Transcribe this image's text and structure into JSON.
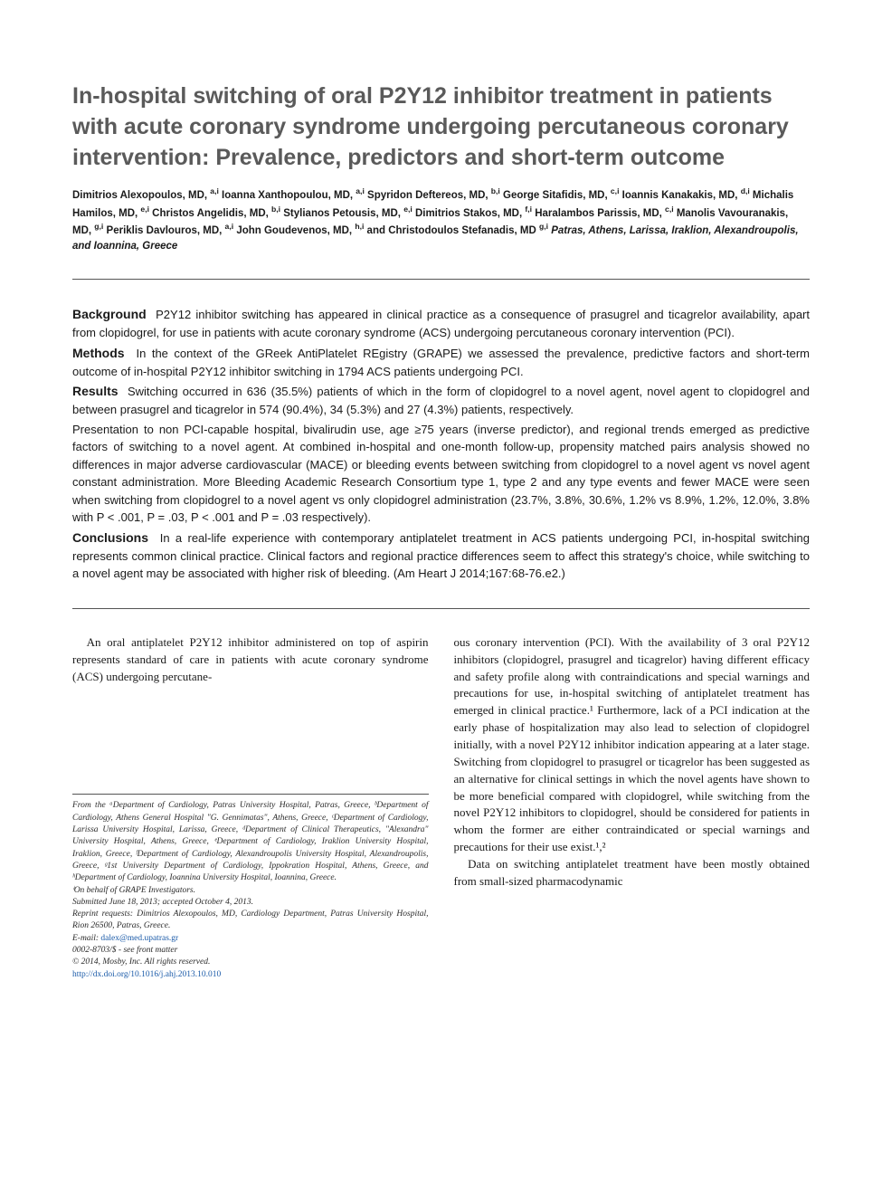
{
  "title": "In-hospital switching of oral P2Y12 inhibitor treatment in patients with acute coronary syndrome undergoing percutaneous coronary intervention: Prevalence, predictors and short-term outcome",
  "authors_html": "Dimitrios Alexopoulos, MD, <span class='sup'>a,i</span> Ioanna Xanthopoulou, MD, <span class='sup'>a,i</span> Spyridon Deftereos, MD, <span class='sup'>b,i</span> George Sitafidis, MD, <span class='sup'>c,i</span> Ioannis Kanakakis, MD, <span class='sup'>d,i</span> Michalis Hamilos, MD, <span class='sup'>e,i</span> Christos Angelidis, MD, <span class='sup'>b,i</span> Stylianos Petousis, MD, <span class='sup'>e,i</span> Dimitrios Stakos, MD, <span class='sup'>f,i</span> Haralambos Parissis, MD, <span class='sup'>c,i</span> Manolis Vavouranakis, MD, <span class='sup'>g,i</span> Periklis Davlouros, MD, <span class='sup'>a,i</span> John Goudevenos, MD, <span class='sup'>h,i</span> and Christodoulos Stefanadis, MD <span class='sup'>g,i</span> <span class='affil-loc'>Patras, Athens, Larissa, Iraklion, Alexandroupolis, and Ioannina, Greece</span>",
  "abstract": {
    "background": {
      "label": "Background",
      "text": "P2Y12 inhibitor switching has appeared in clinical practice as a consequence of prasugrel and ticagrelor availability, apart from clopidogrel, for use in patients with acute coronary syndrome (ACS) undergoing percutaneous coronary intervention (PCI)."
    },
    "methods": {
      "label": "Methods",
      "text": "In the context of the GReek AntiPlatelet REgistry (GRAPE) we assessed the prevalence, predictive factors and short-term outcome of in-hospital P2Y12 inhibitor switching in 1794 ACS patients undergoing PCI."
    },
    "results": {
      "label": "Results",
      "text": "Switching occurred in 636 (35.5%) patients of which in the form of clopidogrel to a novel agent, novel agent to clopidogrel and between prasugrel and ticagrelor in 574 (90.4%), 34 (5.3%) and 27 (4.3%) patients, respectively."
    },
    "results_para": "Presentation to non PCI-capable hospital, bivalirudin use, age ≥75 years (inverse predictor), and regional trends emerged as predictive factors of switching to a novel agent. At combined in-hospital and one-month follow-up, propensity matched pairs analysis showed no differences in major adverse cardiovascular (MACE) or bleeding events between switching from clopidogrel to a novel agent vs novel agent constant administration. More Bleeding Academic Research Consortium type 1, type 2 and any type events and fewer MACE were seen when switching from clopidogrel to a novel agent vs only clopidogrel administration (23.7%, 3.8%, 30.6%, 1.2% vs 8.9%, 1.2%, 12.0%, 3.8% with P < .001, P = .03, P < .001 and P = .03 respectively).",
    "conclusions": {
      "label": "Conclusions",
      "text": "In a real-life experience with contemporary antiplatelet treatment in ACS patients undergoing PCI, in-hospital switching represents common clinical practice. Clinical factors and regional practice differences seem to affect this strategy's choice, while switching to a novel agent may be associated with higher risk of bleeding. (Am Heart J 2014;167:68-76.e2.)"
    }
  },
  "body": {
    "left_p1": "An oral antiplatelet P2Y12 inhibitor administered on top of aspirin represents standard of care in patients with acute coronary syndrome (ACS) undergoing percutane-",
    "right_p1": "ous coronary intervention (PCI). With the availability of 3 oral P2Y12 inhibitors (clopidogrel, prasugrel and ticagrelor) having different efficacy and safety profile along with contraindications and special warnings and precautions for use, in-hospital switching of antiplatelet treatment has emerged in clinical practice.¹ Furthermore, lack of a PCI indication at the early phase of hospitalization may also lead to selection of clopidogrel initially, with a novel P2Y12 inhibitor indication appearing at a later stage. Switching from clopidogrel to prasugrel or ticagrelor has been suggested as an alternative for clinical settings in which the novel agents have shown to be more beneficial compared with clopidogrel, while switching from the novel P2Y12 inhibitors to clopidogrel, should be considered for patients in whom the former are either contraindicated or special warnings and precautions for their use exist.¹,²",
    "right_p2": "Data on switching antiplatelet treatment have been mostly obtained from small-sized pharmacodynamic"
  },
  "footnotes": {
    "affiliations": "From the ᵃDepartment of Cardiology, Patras University Hospital, Patras, Greece, ᵇDepartment of Cardiology, Athens General Hospital \"G. Gennimatas\", Athens, Greece, ᶜDepartment of Cardiology, Larissa University Hospital, Larissa, Greece, ᵈDepartment of Clinical Therapeutics, \"Alexandra\" University Hospital, Athens, Greece, ᵉDepartment of Cardiology, Iraklion University Hospital, Iraklion, Greece, ᶠDepartment of Cardiology, Alexandroupolis University Hospital, Alexandroupolis, Greece, ᵍ1st University Department of Cardiology, Ippokration Hospital, Athens, Greece, and ʰDepartment of Cardiology, Ioannina University Hospital, Ioannina, Greece.",
    "behalf": "ⁱOn behalf of GRAPE Investigators.",
    "submitted": "Submitted June 18, 2013; accepted October 4, 2013.",
    "reprint": "Reprint requests: Dimitrios Alexopoulos, MD, Cardiology Department, Patras University Hospital, Rion 26500, Patras, Greece.",
    "email_label": "E-mail:",
    "email": "dalex@med.upatras.gr",
    "issn": "0002-8703/$ - see front matter",
    "copyright": "© 2014, Mosby, Inc. All rights reserved.",
    "doi": "http://dx.doi.org/10.1016/j.ahj.2013.10.010"
  },
  "colors": {
    "title": "#5a5a5a",
    "text": "#1a1a1a",
    "rule": "#555555",
    "link": "#1a5aa8",
    "background": "#ffffff"
  }
}
